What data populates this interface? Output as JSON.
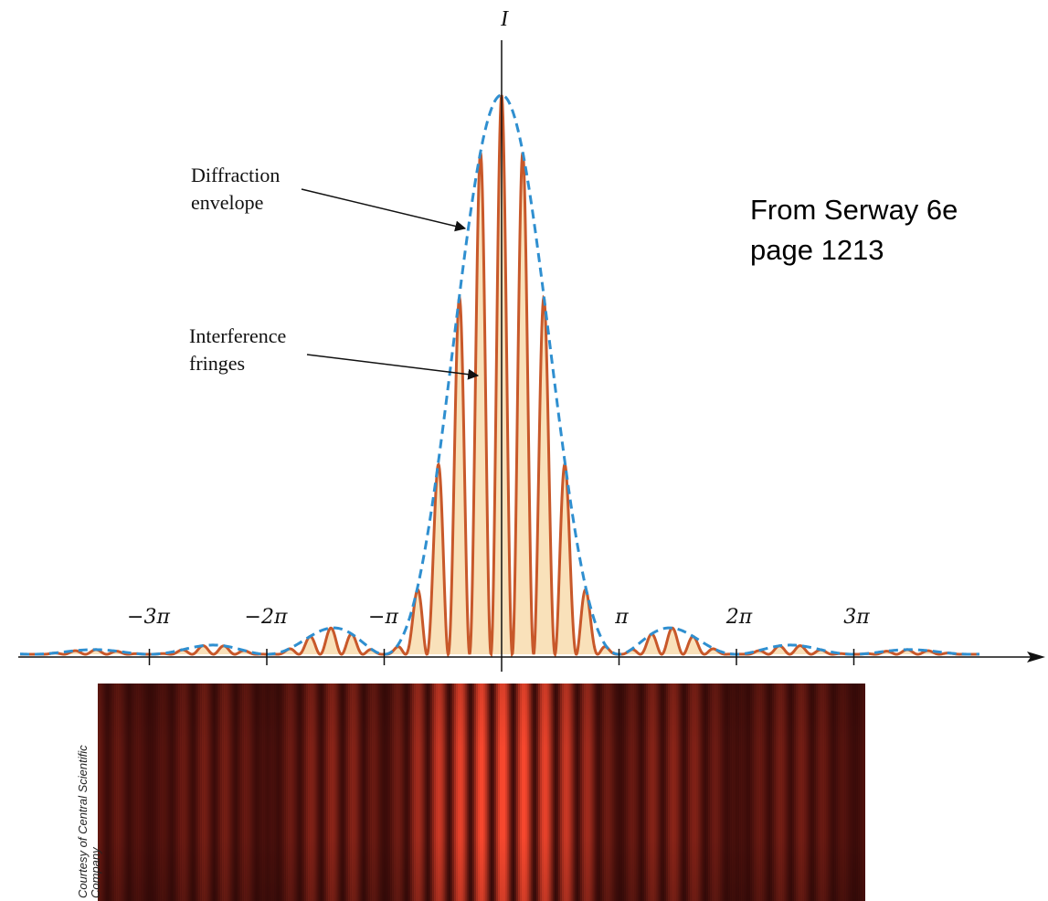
{
  "figure": {
    "y_axis_label": "I",
    "x_ticks": [
      {
        "label": "−3π",
        "value": -3
      },
      {
        "label": "−2π",
        "value": -2
      },
      {
        "label": "−π",
        "value": -1
      },
      {
        "label": "π",
        "value": 1
      },
      {
        "label": "2π",
        "value": 2
      },
      {
        "label": "3π",
        "value": 3
      }
    ],
    "callouts": {
      "envelope": {
        "line1": "Diffraction",
        "line2": "envelope"
      },
      "fringes": {
        "line1": "Interference",
        "line2": "fringes"
      }
    },
    "colors": {
      "envelope": "#2f8fd0",
      "fringes": "#c8582a",
      "fringe_fill": "#f8dcae",
      "axis": "#111111",
      "photo_bright": "#ff4a30",
      "photo_dark": "#2a0606"
    }
  },
  "source_note": {
    "line1": "From Serway 6e",
    "line2": "page 1213"
  },
  "photo_credit": {
    "line1": "Courtesy of Central Scientific",
    "line2": "Company"
  }
}
